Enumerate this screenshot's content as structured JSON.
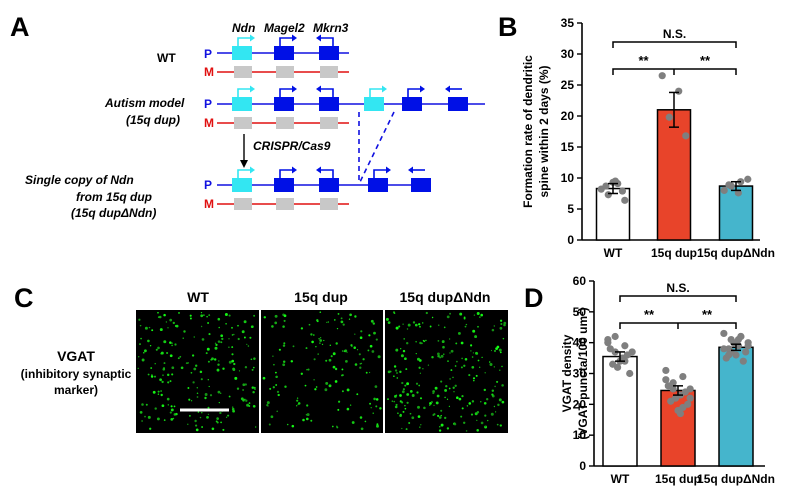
{
  "panels": {
    "A": {
      "letter": "A",
      "genes": [
        "Ndn",
        "Magel2",
        "Mkrn3"
      ],
      "rows": {
        "wt": "WT",
        "autism_line1": "Autism model",
        "autism_line2": "(15q dup)",
        "single_line1": "Single copy of Ndn",
        "single_line2": "from 15q dup",
        "single_line3": "(15q dupΔNdn)"
      },
      "paternal": "P",
      "maternal": "M",
      "arrow_label": "CRISPR/Cas9",
      "colors": {
        "ndn": "#33e6f2",
        "gene": "#0010e6",
        "silenced": "#c8c8c8",
        "maternal_line": "#e01010",
        "paternal_line": "#1010e0"
      }
    },
    "B": {
      "letter": "B",
      "sig": {
        "top": "N.S.",
        "left": "**",
        "right": "**"
      }
    },
    "C": {
      "letter": "C",
      "columns": [
        "WT",
        "15q dup",
        "15q dupΔNdn"
      ],
      "row_label": "VGAT",
      "row_sub_line1": "(inhibitory synaptic",
      "row_sub_line2": "marker)"
    },
    "D": {
      "letter": "D",
      "sig": {
        "top": "N.S.",
        "left": "**",
        "right": "**"
      }
    }
  },
  "chart_data": [
    {
      "type": "bar",
      "panel": "B",
      "categories": [
        "WT",
        "15q dup",
        "15q dupΔNdn"
      ],
      "values": [
        8.3,
        21.0,
        8.7
      ],
      "errors": [
        0.8,
        2.8,
        0.7
      ],
      "colors": [
        "#ffffff",
        "#e8442a",
        "#45b5cc"
      ],
      "ylabel_line1": "Formation rate of dendritic",
      "ylabel_line2": "spine within 2 days (%)",
      "ylim": [
        0,
        35
      ],
      "yticks": [
        0,
        5,
        10,
        15,
        20,
        25,
        30,
        35
      ],
      "points": [
        [
          8.2,
          9.1,
          7.3,
          6.4,
          9.5,
          8.7,
          7.9,
          9.3
        ],
        [
          26.5,
          24.0,
          19.8,
          16.8
        ],
        [
          8.0,
          9.4,
          8.7,
          9.8,
          7.6,
          8.9
        ]
      ]
    },
    {
      "type": "bar",
      "panel": "D",
      "categories": [
        "WT",
        "15q dup",
        "15q dupΔNdn"
      ],
      "values": [
        35.5,
        24.5,
        38.5
      ],
      "errors": [
        1.5,
        1.5,
        1.0
      ],
      "colors": [
        "#ffffff",
        "#e8442a",
        "#45b5cc"
      ],
      "ylabel_line1": "VGAT density",
      "ylabel_line2": "(VGAT puncta/100 um",
      "ylabel_sup": "2",
      "ylabel_end": ")",
      "ylim": [
        0,
        60
      ],
      "yticks": [
        0,
        10,
        20,
        30,
        40,
        50,
        60
      ],
      "points": [
        [
          41,
          39,
          42,
          37,
          35,
          33,
          30,
          34,
          38,
          36,
          32,
          40,
          34,
          37
        ],
        [
          31,
          29,
          27,
          25,
          23,
          21,
          20,
          18,
          26,
          24,
          22,
          28,
          19,
          25,
          22,
          17
        ],
        [
          43,
          42,
          41,
          40,
          39,
          38,
          37,
          36,
          35,
          34,
          40,
          38,
          42,
          37,
          39,
          41,
          36
        ]
      ]
    }
  ]
}
